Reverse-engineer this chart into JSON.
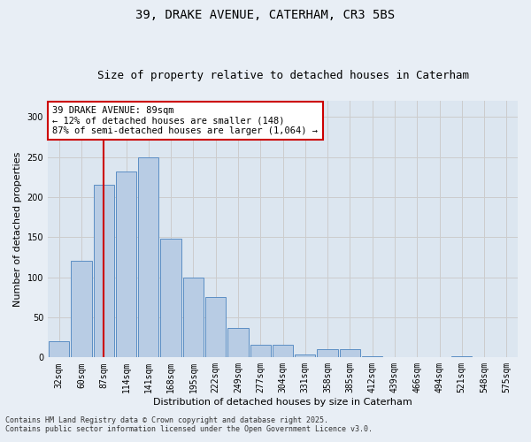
{
  "title1": "39, DRAKE AVENUE, CATERHAM, CR3 5BS",
  "title2": "Size of property relative to detached houses in Caterham",
  "xlabel": "Distribution of detached houses by size in Caterham",
  "ylabel": "Number of detached properties",
  "categories": [
    "32sqm",
    "60sqm",
    "87sqm",
    "114sqm",
    "141sqm",
    "168sqm",
    "195sqm",
    "222sqm",
    "249sqm",
    "277sqm",
    "304sqm",
    "331sqm",
    "358sqm",
    "385sqm",
    "412sqm",
    "439sqm",
    "466sqm",
    "494sqm",
    "521sqm",
    "548sqm",
    "575sqm"
  ],
  "values": [
    20,
    120,
    215,
    232,
    250,
    148,
    100,
    75,
    37,
    16,
    16,
    4,
    10,
    10,
    2,
    0,
    0,
    0,
    2,
    0,
    0
  ],
  "bar_color": "#b8cce4",
  "bar_edge_color": "#5b8ec4",
  "vline_x_index": 2,
  "vline_color": "#cc0000",
  "annotation_text": "39 DRAKE AVENUE: 89sqm\n← 12% of detached houses are smaller (148)\n87% of semi-detached houses are larger (1,064) →",
  "annotation_box_color": "#ffffff",
  "annotation_box_edge_color": "#cc0000",
  "ylim": [
    0,
    320
  ],
  "yticks": [
    0,
    50,
    100,
    150,
    200,
    250,
    300
  ],
  "grid_color": "#cccccc",
  "bg_color": "#dce6f0",
  "fig_bg_color": "#e8eef5",
  "footer1": "Contains HM Land Registry data © Crown copyright and database right 2025.",
  "footer2": "Contains public sector information licensed under the Open Government Licence v3.0.",
  "title_fontsize": 10,
  "subtitle_fontsize": 9,
  "axis_label_fontsize": 8,
  "tick_fontsize": 7,
  "annotation_fontsize": 7.5,
  "footer_fontsize": 6
}
